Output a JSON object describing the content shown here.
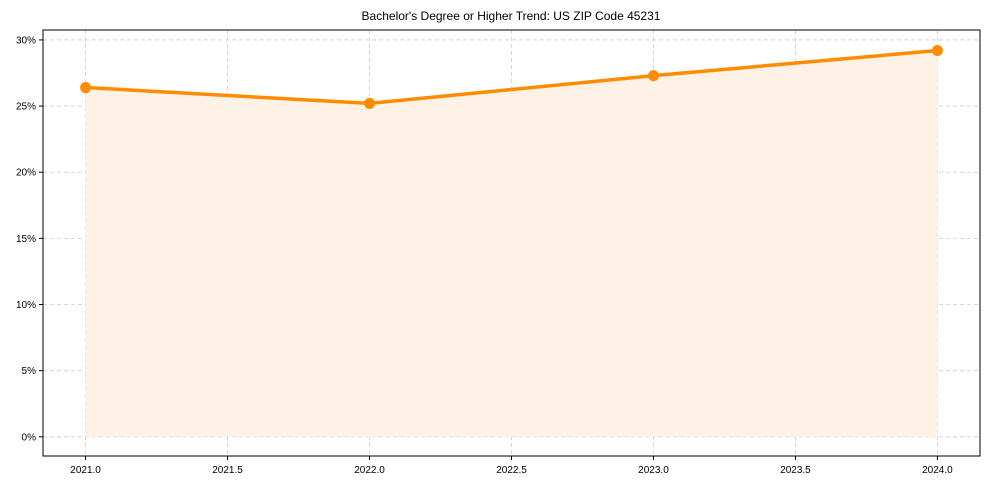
{
  "chart_data": {
    "type": "line",
    "title": "Bachelor's Degree or Higher Trend: US ZIP Code 45231",
    "xlabel": "",
    "ylabel": "",
    "x": [
      2021,
      2022,
      2023,
      2024
    ],
    "series": [
      {
        "name": "Bachelor's Degree or Higher",
        "values": [
          26.4,
          25.2,
          27.3,
          29.2
        ],
        "color": "#FF8C00",
        "fill_color": "#FEF2E6",
        "marker": "circle"
      }
    ],
    "xlim": [
      2020.85,
      2024.15
    ],
    "ylim": [
      -1.45,
      30.75
    ],
    "x_ticks": [
      2021.0,
      2021.5,
      2022.0,
      2022.5,
      2023.0,
      2023.5,
      2024.0
    ],
    "x_tick_labels": [
      "2021.0",
      "2021.5",
      "2022.0",
      "2022.5",
      "2023.0",
      "2023.5",
      "2024.0"
    ],
    "y_ticks": [
      0,
      5,
      10,
      15,
      20,
      25,
      30
    ],
    "y_tick_labels": [
      "0%",
      "5%",
      "10%",
      "15%",
      "20%",
      "25%",
      "30%"
    ],
    "grid": true,
    "legend": null
  }
}
